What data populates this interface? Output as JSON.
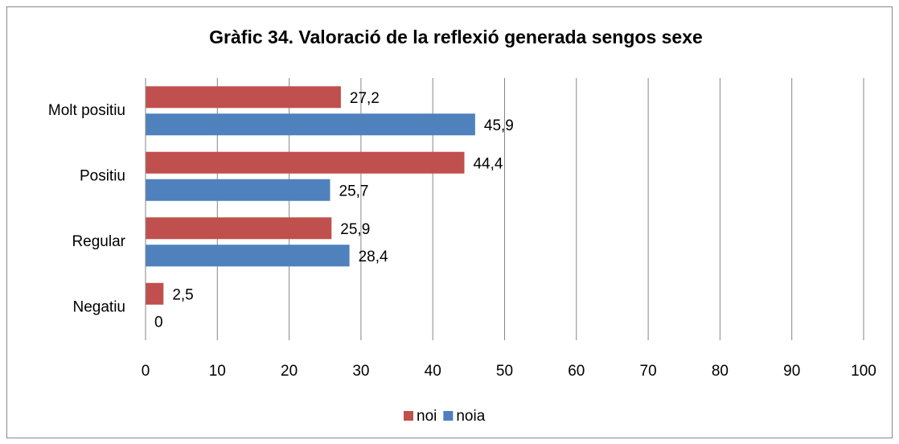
{
  "chart_data": {
    "type": "bar",
    "orientation": "horizontal",
    "title": "Gràfic 34. Valoració de la reflexió generada sengos sexe",
    "categories": [
      "Molt positiu",
      "Positiu",
      "Regular",
      "Negatiu"
    ],
    "series": [
      {
        "name": "noi",
        "color": "#c0504d",
        "values": [
          27.2,
          44.4,
          25.9,
          2.5
        ],
        "value_labels": [
          "27,2",
          "44,4",
          "25,9",
          "2,5"
        ]
      },
      {
        "name": "noia",
        "color": "#4f81bd",
        "values": [
          45.9,
          25.7,
          28.4,
          0
        ],
        "value_labels": [
          "45,9",
          "25,7",
          "28,4",
          "0"
        ]
      }
    ],
    "xlim": [
      0,
      100
    ],
    "xticks": [
      0,
      10,
      20,
      30,
      40,
      50,
      60,
      70,
      80,
      90,
      100
    ],
    "grid": true,
    "legend": "bottom"
  }
}
